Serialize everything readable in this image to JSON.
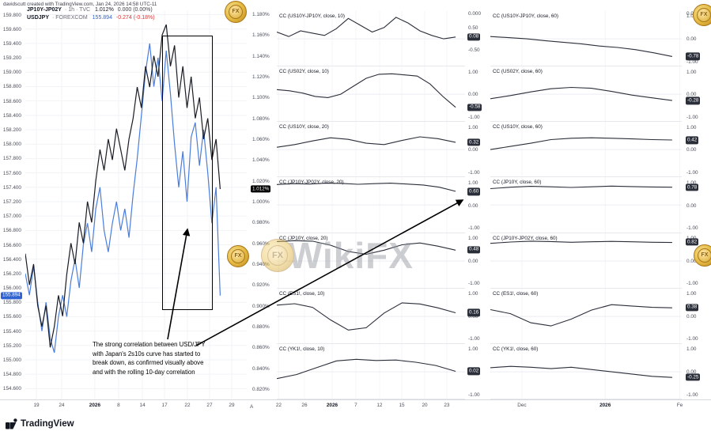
{
  "header": {
    "credit": "davidscutt created with TradingView.com, Jan 24, 2026 14:58 UTC-11"
  },
  "legend": {
    "row1": {
      "symbol": "JP10Y-JP02Y",
      "meta": "· 1h · TVC",
      "value": "1.012%",
      "change": "0.000 (0.00%)"
    },
    "row2": {
      "symbol": "USDJPY",
      "meta": "· FOREXCOM",
      "value": "155.894",
      "change": "-0.274 (-0.18%)"
    }
  },
  "annotation": {
    "lines": [
      "The strong correlation between USD/JPY",
      "with Japan's 2s10s curve has started to",
      "break down, as confirmed visually above",
      "and with the rolling 10-day correlation"
    ]
  },
  "watermark": {
    "text": "WikiFX"
  },
  "footer": {
    "brand": "TradingView"
  },
  "colors": {
    "usdjpy_line": "#4a7ddc",
    "spread_line": "#1a1c24",
    "cc_line": "#2a2e39",
    "badge_dark": "#2a2e39",
    "badge_black": "#000000",
    "badge_blue": "#2f63d1",
    "negative_text": "#e03131",
    "gold": "#d4a017"
  },
  "chart_data": {
    "main": {
      "type": "line",
      "title": "JP10Y-JP02Y (1h, TVC) with USDJPY (FOREXCOM) overlay",
      "x_axis_marker": "A",
      "x_ticks": [
        {
          "label": "19",
          "f": 0.05,
          "bold": false
        },
        {
          "label": "24",
          "f": 0.164,
          "bold": false
        },
        {
          "label": "2026",
          "f": 0.314,
          "bold": true
        },
        {
          "label": "8",
          "f": 0.421,
          "bold": false
        },
        {
          "label": "14",
          "f": 0.529,
          "bold": false
        },
        {
          "label": "17",
          "f": 0.629,
          "bold": false
        },
        {
          "label": "22",
          "f": 0.732,
          "bold": false
        },
        {
          "label": "27",
          "f": 0.832,
          "bold": false
        },
        {
          "label": "29",
          "f": 0.932,
          "bold": false
        }
      ],
      "left_axis": {
        "title": "USDJPY",
        "min": 154.45,
        "max": 159.85,
        "last": "155.894",
        "step_labels": [
          "159.800",
          "159.600",
          "159.400",
          "159.200",
          "159.000",
          "158.800",
          "158.600",
          "158.400",
          "158.200",
          "158.000",
          "157.800",
          "157.600",
          "157.400",
          "157.200",
          "157.000",
          "156.800",
          "156.600",
          "156.400",
          "156.200",
          "156.000",
          "155.800",
          "155.600",
          "155.400",
          "155.200",
          "155.000",
          "154.800",
          "154.600"
        ]
      },
      "right_axis": {
        "title": "JP10Y-JP02Y %",
        "min": 0.81,
        "max": 1.183,
        "last": "1.012%",
        "step_labels": [
          "1.180%",
          "1.160%",
          "1.140%",
          "1.120%",
          "1.100%",
          "1.080%",
          "1.060%",
          "1.040%",
          "1.020%",
          "1.000%",
          "0.980%",
          "0.960%",
          "0.940%",
          "0.920%",
          "0.900%",
          "0.880%",
          "0.860%",
          "0.840%",
          "0.820%"
        ]
      },
      "series": [
        {
          "name": "USDJPY",
          "axis": "left",
          "color": "#4a7ddc",
          "values": [
            156.2,
            155.9,
            156.3,
            155.8,
            155.4,
            155.8,
            155.3,
            155.1,
            155.6,
            155.9,
            155.6,
            156.1,
            156.4,
            156.0,
            156.6,
            156.9,
            156.5,
            157.1,
            157.4,
            156.8,
            156.5,
            156.9,
            157.2,
            156.8,
            157.1,
            156.7,
            157.3,
            157.8,
            158.4,
            159.0,
            159.4,
            158.8,
            159.2,
            158.6,
            159.3,
            158.7,
            158.0,
            157.4,
            157.9,
            157.2,
            158.1,
            158.3,
            157.7,
            158.2,
            157.6,
            156.9,
            157.4,
            155.894
          ]
        },
        {
          "name": "JP10Y-JP02Y",
          "axis": "right",
          "color": "#1a1c24",
          "values": [
            0.95,
            0.92,
            0.94,
            0.9,
            0.88,
            0.9,
            0.86,
            0.88,
            0.91,
            0.89,
            0.93,
            0.96,
            0.94,
            0.98,
            0.96,
            1.0,
            0.98,
            1.02,
            1.05,
            1.03,
            1.06,
            1.04,
            1.07,
            1.05,
            1.03,
            1.06,
            1.08,
            1.11,
            1.09,
            1.13,
            1.11,
            1.14,
            1.12,
            1.16,
            1.17,
            1.13,
            1.15,
            1.1,
            1.13,
            1.09,
            1.12,
            1.08,
            1.1,
            1.06,
            1.08,
            1.04,
            1.06,
            1.012
          ]
        }
      ]
    },
    "mid_column": {
      "top_label": "0.000",
      "x_ticks": [
        {
          "label": "22",
          "f": 0.01,
          "bold": false
        },
        {
          "label": "26",
          "f": 0.147,
          "bold": false
        },
        {
          "label": "2026",
          "f": 0.294,
          "bold": true
        },
        {
          "label": "7",
          "f": 0.42,
          "bold": false
        },
        {
          "label": "12",
          "f": 0.546,
          "bold": false
        },
        {
          "label": "15",
          "f": 0.664,
          "bold": false
        },
        {
          "label": "20",
          "f": 0.786,
          "bold": false
        },
        {
          "label": "23",
          "f": 0.903,
          "bold": false
        }
      ],
      "panels": [
        {
          "label": "CC (US10Y-JP10Y, close, 10)",
          "last": "0.08",
          "ticks": [
            "0.50",
            "0.00",
            "-0.50"
          ],
          "values": [
            0.3,
            0.1,
            0.35,
            0.25,
            0.15,
            0.45,
            0.9,
            0.6,
            0.3,
            0.5,
            0.95,
            0.7,
            0.35,
            0.15,
            0.0,
            0.08
          ]
        },
        {
          "label": "CC (US02Y, close, 10)",
          "last": "-0.58",
          "ticks": [
            "1.00",
            "0.00",
            "-1.00"
          ],
          "values": [
            0.2,
            0.15,
            0.05,
            -0.1,
            -0.15,
            0.0,
            0.35,
            0.7,
            0.88,
            0.9,
            0.85,
            0.8,
            0.45,
            -0.1,
            -0.58
          ]
        },
        {
          "label": "CC (US10Y, close, 20)",
          "last": "0.32",
          "ticks": [
            "1.00",
            "0.00",
            "-1.00"
          ],
          "values": [
            0.1,
            0.22,
            0.38,
            0.52,
            0.45,
            0.28,
            0.22,
            0.4,
            0.56,
            0.48,
            0.32
          ]
        },
        {
          "label": "CC (JP10Y-JP02Y, close, 20)",
          "last": "0.60",
          "ticks": [
            "1.00",
            "0.00",
            "-1.00"
          ],
          "values": [
            0.9,
            0.94,
            0.92,
            0.96,
            0.95,
            0.91,
            0.94,
            0.96,
            0.92,
            0.88,
            0.78,
            0.6
          ]
        },
        {
          "label": "CC (JP10Y, close, 20)",
          "last": "0.48",
          "ticks": [
            "1.00",
            "0.00",
            "-1.00"
          ],
          "values": [
            0.86,
            0.9,
            0.88,
            0.7,
            0.42,
            0.3,
            0.48,
            0.72,
            0.8,
            0.66,
            0.48
          ]
        },
        {
          "label": "CC (ES1!, close, 10)",
          "last": "0.16",
          "ticks": [
            "1.00",
            "0.00",
            "-1.00"
          ],
          "values": [
            0.5,
            0.56,
            0.4,
            -0.15,
            -0.6,
            -0.5,
            0.15,
            0.6,
            0.55,
            0.38,
            0.16
          ]
        },
        {
          "label": "CC (YK1!, close, 10)",
          "last": "0.02",
          "ticks": [
            "1.00",
            "0.00",
            "-1.00"
          ],
          "values": [
            -0.3,
            -0.12,
            0.18,
            0.48,
            0.55,
            0.5,
            0.52,
            0.42,
            0.28,
            0.02
          ]
        }
      ]
    },
    "right_column": {
      "top_label": "0.000",
      "x_ticks": [
        {
          "label": "Dec",
          "f": 0.165,
          "bold": false
        },
        {
          "label": "2026",
          "f": 0.6,
          "bold": true
        },
        {
          "label": "Fe",
          "f": 0.99,
          "bold": false
        }
      ],
      "panels": [
        {
          "label": "CC (US10Y-JP10Y, close, 60)",
          "last": "-0.78",
          "ticks": [
            "1.00",
            "0.00",
            "-1.00"
          ],
          "values": [
            0.1,
            0.05,
            0.0,
            -0.08,
            -0.15,
            -0.22,
            -0.32,
            -0.38,
            -0.48,
            -0.62,
            -0.78
          ]
        },
        {
          "label": "CC (US02Y, close, 60)",
          "last": "-0.28",
          "ticks": [
            "1.00",
            "0.00",
            "-1.00"
          ],
          "values": [
            -0.2,
            -0.06,
            0.1,
            0.24,
            0.3,
            0.26,
            0.12,
            -0.04,
            -0.16,
            -0.28
          ]
        },
        {
          "label": "CC (US10Y, close, 60)",
          "last": "0.42",
          "ticks": [
            "1.00",
            "0.00",
            "-1.00"
          ],
          "values": [
            0.0,
            0.14,
            0.28,
            0.44,
            0.5,
            0.52,
            0.5,
            0.47,
            0.44,
            0.42
          ]
        },
        {
          "label": "CC (JP10Y, close, 60)",
          "last": "0.78",
          "ticks": [
            "1.00",
            "0.00",
            "-1.00"
          ],
          "values": [
            0.72,
            0.78,
            0.82,
            0.8,
            0.77,
            0.8,
            0.83,
            0.81,
            0.79,
            0.78
          ]
        },
        {
          "label": "CC (JP10Y-JP02Y, close, 60)",
          "last": "0.82",
          "ticks": [
            "1.00",
            "0.00",
            "-1.00"
          ],
          "values": [
            0.78,
            0.84,
            0.88,
            0.86,
            0.83,
            0.85,
            0.87,
            0.85,
            0.83,
            0.82
          ]
        },
        {
          "label": "CC (ES1!, close, 60)",
          "last": "0.38",
          "ticks": [
            "1.00",
            "0.00",
            "-1.00"
          ],
          "values": [
            0.3,
            0.12,
            -0.28,
            -0.42,
            -0.12,
            0.28,
            0.52,
            0.46,
            0.4,
            0.38
          ]
        },
        {
          "label": "CC (YK1!, close, 60)",
          "last": "-0.25",
          "ticks": [
            "1.00",
            "0.00",
            "-1.00"
          ],
          "values": [
            0.18,
            0.24,
            0.2,
            0.14,
            0.2,
            0.1,
            0.0,
            -0.1,
            -0.2,
            -0.25
          ]
        }
      ]
    }
  }
}
